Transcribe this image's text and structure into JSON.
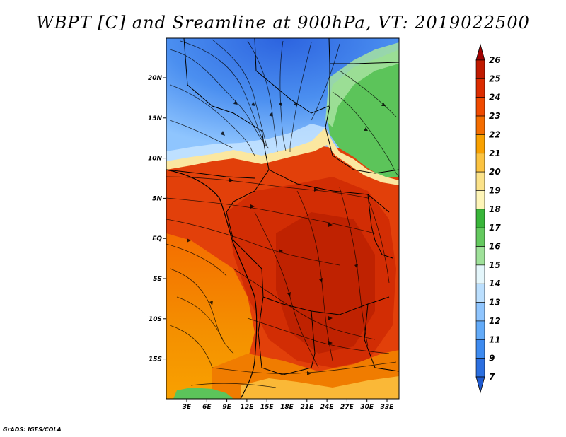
{
  "title": "WBPT [C] and Sreamline at 900hPa, VT: 2019022500",
  "credit": "GrADS: IGES/COLA",
  "map": {
    "lat_labels": [
      "20N",
      "15N",
      "10N",
      "5N",
      "EQ",
      "5S",
      "10S",
      "15S"
    ],
    "lon_labels": [
      "3E",
      "6E",
      "9E",
      "12E",
      "15E",
      "18E",
      "21E",
      "24E",
      "27E",
      "30E",
      "33E"
    ]
  },
  "colorbar": {
    "levels": [
      "26",
      "25",
      "24",
      "23",
      "22",
      "21",
      "20",
      "19",
      "18",
      "17",
      "16",
      "15",
      "14",
      "13",
      "12",
      "11",
      "9",
      "7"
    ],
    "colors": [
      "#a00000",
      "#c01a00",
      "#dc2c00",
      "#f04a00",
      "#f46d00",
      "#f9a100",
      "#fbc341",
      "#fbe289",
      "#fef5b8",
      "#39b63a",
      "#64c95f",
      "#9fe19a",
      "#e4f6fb",
      "#bbdffe",
      "#8fc5fe",
      "#63abf9",
      "#3e8bf0",
      "#2b6fe0",
      "#1f5ad0"
    ]
  }
}
